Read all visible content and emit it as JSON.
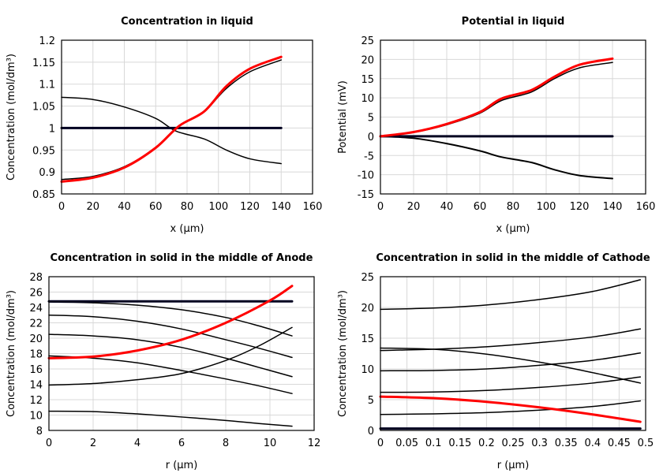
{
  "chart_data": [
    {
      "type": "line",
      "title": "Concentration in liquid",
      "xlabel": "x (µm)",
      "ylabel": "Concentration (mol/dm³)",
      "xlim": [
        0,
        160
      ],
      "ylim": [
        0.85,
        1.2
      ],
      "xticks": [
        "0",
        "20",
        "40",
        "60",
        "80",
        "100",
        "120",
        "140",
        "160"
      ],
      "yticks": [
        "0.85",
        "0.9",
        "0.95",
        "1",
        "1.05",
        "1.1",
        "1.15",
        "1.2"
      ],
      "grid": true,
      "series": [
        {
          "color": "#000000",
          "width": 1.5,
          "x": [
            0,
            20,
            40,
            60,
            73,
            91,
            105,
            120,
            140
          ],
          "y": [
            1.07,
            1.065,
            1.048,
            1.022,
            0.993,
            0.975,
            0.95,
            0.93,
            0.919
          ]
        },
        {
          "color": "#000000",
          "width": 1.5,
          "x": [
            0,
            20,
            40,
            60,
            75,
            91,
            105,
            120,
            140
          ],
          "y": [
            0.883,
            0.89,
            0.912,
            0.955,
            1.005,
            1.038,
            1.09,
            1.128,
            1.155
          ]
        },
        {
          "color": "#000020",
          "width": 3,
          "x": [
            0,
            140
          ],
          "y": [
            1.0,
            1.0
          ]
        },
        {
          "color": "#ff0000",
          "width": 3,
          "x": [
            0,
            20,
            40,
            60,
            75,
            91,
            105,
            120,
            140
          ],
          "y": [
            0.878,
            0.887,
            0.91,
            0.955,
            1.005,
            1.038,
            1.095,
            1.135,
            1.162
          ]
        }
      ]
    },
    {
      "type": "line",
      "title": "Potential in liquid",
      "xlabel": "x (µm)",
      "ylabel": "Potential (mV)",
      "xlim": [
        0,
        160
      ],
      "ylim": [
        -15,
        25
      ],
      "xticks": [
        "0",
        "20",
        "40",
        "60",
        "80",
        "100",
        "120",
        "140",
        "160"
      ],
      "yticks": [
        "-15",
        "-10",
        "-5",
        "0",
        "5",
        "10",
        "15",
        "20",
        "25"
      ],
      "grid": true,
      "series": [
        {
          "color": "#000000",
          "width": 2,
          "x": [
            0,
            20,
            40,
            60,
            73,
            91,
            105,
            120,
            140
          ],
          "y": [
            0,
            -0.5,
            -1.9,
            -3.8,
            -5.4,
            -6.8,
            -8.7,
            -10.2,
            -11
          ]
        },
        {
          "color": "#000000",
          "width": 1.5,
          "x": [
            0,
            20,
            40,
            60,
            73,
            91,
            105,
            120,
            140
          ],
          "y": [
            0,
            1,
            3,
            6,
            9.3,
            11.5,
            15,
            17.8,
            19.2
          ]
        },
        {
          "color": "#000020",
          "width": 3,
          "x": [
            0,
            140
          ],
          "y": [
            0,
            0
          ]
        },
        {
          "color": "#ff0000",
          "width": 3,
          "x": [
            0,
            20,
            40,
            60,
            73,
            91,
            105,
            120,
            140
          ],
          "y": [
            0,
            1.1,
            3.2,
            6.3,
            9.8,
            12,
            15.5,
            18.6,
            20.2
          ]
        }
      ]
    },
    {
      "type": "line",
      "title": "Concentration in solid in the middle of Anode",
      "xlabel": "r (µm)",
      "ylabel": "Concentration (mol/dm³)",
      "xlim": [
        0,
        12
      ],
      "ylim": [
        8,
        28
      ],
      "xticks": [
        "0",
        "2",
        "4",
        "6",
        "8",
        "10",
        "12"
      ],
      "yticks": [
        "8",
        "10",
        "12",
        "14",
        "16",
        "18",
        "20",
        "22",
        "24",
        "26",
        "28"
      ],
      "grid": true,
      "series": [
        {
          "color": "#000000",
          "width": 1.5,
          "x": [
            0,
            2,
            4,
            6,
            8,
            9.5,
            11
          ],
          "y": [
            24.7,
            24.6,
            24.3,
            23.7,
            22.7,
            21.6,
            20.3
          ]
        },
        {
          "color": "#000000",
          "width": 1.5,
          "x": [
            0,
            2,
            4,
            6,
            8,
            9.5,
            11
          ],
          "y": [
            23,
            22.8,
            22.2,
            21.2,
            19.8,
            18.7,
            17.5
          ]
        },
        {
          "color": "#000000",
          "width": 1.5,
          "x": [
            0,
            2,
            4,
            6,
            8,
            9.5,
            11
          ],
          "y": [
            20.5,
            20.3,
            19.8,
            18.8,
            17.4,
            16.2,
            15
          ]
        },
        {
          "color": "#000000",
          "width": 1.5,
          "x": [
            0,
            2,
            4,
            6,
            8,
            9.5,
            11
          ],
          "y": [
            17.7,
            17.4,
            16.8,
            15.8,
            14.7,
            13.8,
            12.8
          ]
        },
        {
          "color": "#000000",
          "width": 1.5,
          "x": [
            0,
            2,
            4,
            6,
            8,
            9.5,
            11
          ],
          "y": [
            13.9,
            14.1,
            14.6,
            15.4,
            17.1,
            19,
            21.4
          ]
        },
        {
          "color": "#000000",
          "width": 1.5,
          "x": [
            0,
            2,
            4,
            6,
            8,
            9.5,
            11
          ],
          "y": [
            10.5,
            10.45,
            10.15,
            9.75,
            9.3,
            8.9,
            8.55
          ]
        },
        {
          "color": "#000020",
          "width": 3,
          "x": [
            0,
            11
          ],
          "y": [
            24.8,
            24.8
          ]
        },
        {
          "color": "#ff0000",
          "width": 3,
          "x": [
            0,
            2,
            4,
            6,
            8,
            10,
            11
          ],
          "y": [
            17.4,
            17.6,
            18.4,
            19.8,
            22,
            24.9,
            26.8
          ]
        }
      ]
    },
    {
      "type": "line",
      "title": "Concentration in solid in the middle of Cathode",
      "xlabel": "r (µm)",
      "ylabel": "Concentration (mol/dm³)",
      "xlim": [
        0,
        0.5
      ],
      "ylim": [
        0,
        25
      ],
      "xticks": [
        "0",
        "0.05",
        "0.1",
        "0.15",
        "0.2",
        "0.25",
        "0.3",
        "0.35",
        "0.4",
        "0.45",
        "0.5"
      ],
      "yticks": [
        "0",
        "5",
        "10",
        "15",
        "20",
        "25"
      ],
      "grid": true,
      "series": [
        {
          "color": "#000000",
          "width": 1.5,
          "x": [
            0,
            0.1,
            0.2,
            0.3,
            0.4,
            0.49
          ],
          "y": [
            19.7,
            19.9,
            20.4,
            21.3,
            22.6,
            24.5
          ]
        },
        {
          "color": "#000000",
          "width": 1.5,
          "x": [
            0,
            0.1,
            0.2,
            0.3,
            0.4,
            0.49
          ],
          "y": [
            13.0,
            13.2,
            13.6,
            14.3,
            15.2,
            16.5
          ]
        },
        {
          "color": "#000000",
          "width": 1.5,
          "x": [
            0,
            0.1,
            0.2,
            0.3,
            0.4,
            0.49
          ],
          "y": [
            13.4,
            13.2,
            12.4,
            11.1,
            9.4,
            7.7
          ]
        },
        {
          "color": "#000000",
          "width": 1.5,
          "x": [
            0,
            0.1,
            0.2,
            0.3,
            0.4,
            0.49
          ],
          "y": [
            9.7,
            9.75,
            10.0,
            10.6,
            11.4,
            12.6
          ]
        },
        {
          "color": "#000000",
          "width": 1.5,
          "x": [
            0,
            0.1,
            0.2,
            0.3,
            0.4,
            0.49
          ],
          "y": [
            6.2,
            6.25,
            6.5,
            7.0,
            7.7,
            8.7
          ]
        },
        {
          "color": "#000000",
          "width": 1.5,
          "x": [
            0,
            0.1,
            0.2,
            0.3,
            0.4,
            0.49
          ],
          "y": [
            2.6,
            2.7,
            2.9,
            3.3,
            3.9,
            4.8
          ]
        },
        {
          "color": "#000020",
          "width": 3,
          "x": [
            0,
            0.49
          ],
          "y": [
            0.3,
            0.3
          ]
        },
        {
          "color": "#ff0000",
          "width": 3,
          "x": [
            0,
            0.1,
            0.2,
            0.3,
            0.4,
            0.49
          ],
          "y": [
            5.5,
            5.25,
            4.65,
            3.75,
            2.6,
            1.4
          ]
        }
      ]
    }
  ]
}
